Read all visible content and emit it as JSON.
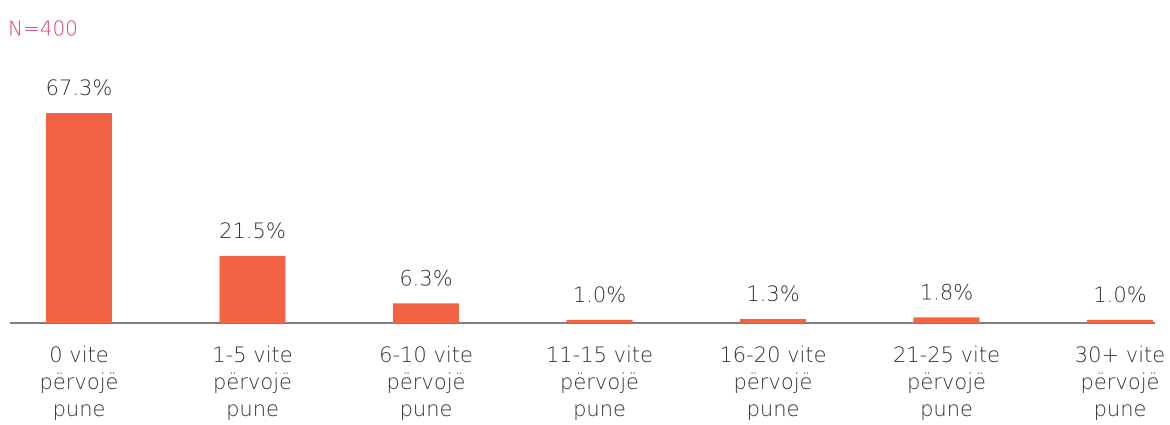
{
  "chart_data": {
    "type": "bar",
    "subtitle": "N=400",
    "categories": [
      [
        "0 vite",
        "përvojë",
        "pune"
      ],
      [
        "1-5 vite",
        "përvojë",
        "pune"
      ],
      [
        "6-10 vite",
        "përvojë",
        "pune"
      ],
      [
        "11-15 vite",
        "përvojë",
        "pune"
      ],
      [
        "16-20 vite",
        "përvojë",
        "pune"
      ],
      [
        "21-25 vite",
        "përvojë",
        "pune"
      ],
      [
        "30+ vite",
        "përvojë",
        "pune"
      ]
    ],
    "values": [
      67.3,
      21.5,
      6.3,
      1.0,
      1.3,
      1.8,
      1.0
    ],
    "value_labels": [
      "67.3%",
      "21.5%",
      "6.3%",
      "1.0%",
      "1.3%",
      "1.8%",
      "1.0%"
    ],
    "color": "#f26344"
  }
}
